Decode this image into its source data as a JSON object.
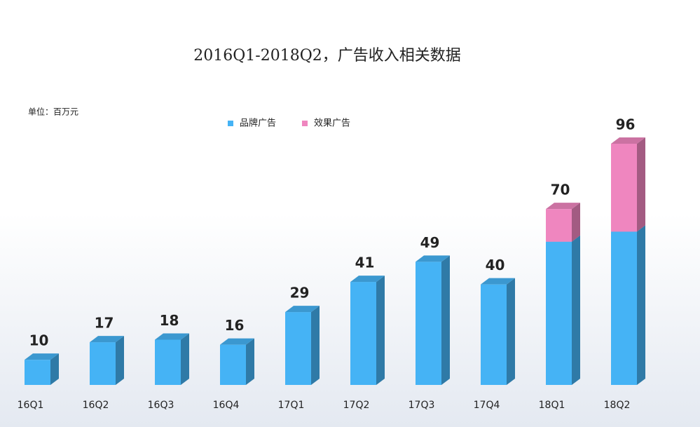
{
  "chart_data": {
    "type": "bar3d-stacked",
    "title": "2016Q1-2018Q2，广告收入相关数据",
    "unit": "单位：百万元",
    "categories": [
      "16Q1",
      "16Q2",
      "16Q3",
      "16Q4",
      "17Q1",
      "17Q2",
      "17Q3",
      "17Q4",
      "18Q1",
      "18Q2"
    ],
    "series": [
      {
        "name": "品牌广告",
        "color": "#45b3f5",
        "values": [
          10,
          17,
          18,
          16,
          29,
          41,
          49,
          40,
          57,
          61
        ]
      },
      {
        "name": "效果广告",
        "color": "#ef86bf",
        "values": [
          null,
          null,
          null,
          null,
          null,
          null,
          null,
          null,
          13,
          35
        ]
      }
    ],
    "totals": [
      10,
      17,
      18,
      16,
      29,
      41,
      49,
      40,
      70,
      96
    ]
  }
}
